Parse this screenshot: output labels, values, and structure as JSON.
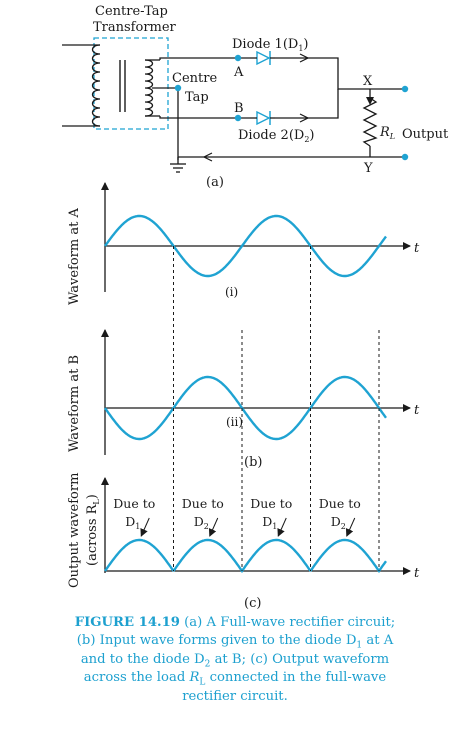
{
  "colors": {
    "wave": "#1fa3d2",
    "ink": "#1a1a1a",
    "dashed_box": "#1fa3d2",
    "caption": "#1da0cf"
  },
  "circuit": {
    "transformer_label_1": "Centre-Tap",
    "transformer_label_2": "Transformer",
    "diode1_label": "Diode 1(D",
    "diode1_sub": "1",
    "diode1_close": ")",
    "diode2_label": "Diode 2(D",
    "diode2_sub": "2",
    "diode2_close": ")",
    "centre_label": "Centre",
    "tap_label": "Tap",
    "node_a": "A",
    "node_b": "B",
    "node_x": "X",
    "node_y": "Y",
    "resistor_symbol": "R",
    "resistor_sub": "L",
    "output_label": "Output",
    "panel_label": "(a)"
  },
  "panel_i": {
    "ylabel": "Waveform at A",
    "axis_label": "t",
    "sublabel": "(i)"
  },
  "panel_ii": {
    "ylabel": "Waveform at B",
    "axis_label": "t",
    "sublabel": "(ii)"
  },
  "panel_b_label": "(b)",
  "panel_c": {
    "ylabel_1": "Output waveform",
    "ylabel_2a": "(across R",
    "ylabel_2sub": "L",
    "ylabel_2b": ")",
    "axis_label": "t",
    "sublabel": "(c)",
    "annotations": [
      {
        "line1": "Due to",
        "line2": "D",
        "sub": "1"
      },
      {
        "line1": "Due to",
        "line2": "D",
        "sub": "2"
      },
      {
        "line1": "Due to",
        "line2": "D",
        "sub": "1"
      },
      {
        "line1": "Due to",
        "line2": "D",
        "sub": "2"
      }
    ]
  },
  "caption": {
    "lead": "FIGURE 14.19",
    "t1": " (a) A Full-wave rectifier circuit; (b) Input wave forms given to the diode D",
    "s1": "1",
    "t2": " at A and to the diode D",
    "s2": "2",
    "t3": " at B; (c) Output waveform across the load ",
    "rl": "R",
    "rls": "L",
    "t4": " connected in the full-wave rectifier circuit."
  }
}
